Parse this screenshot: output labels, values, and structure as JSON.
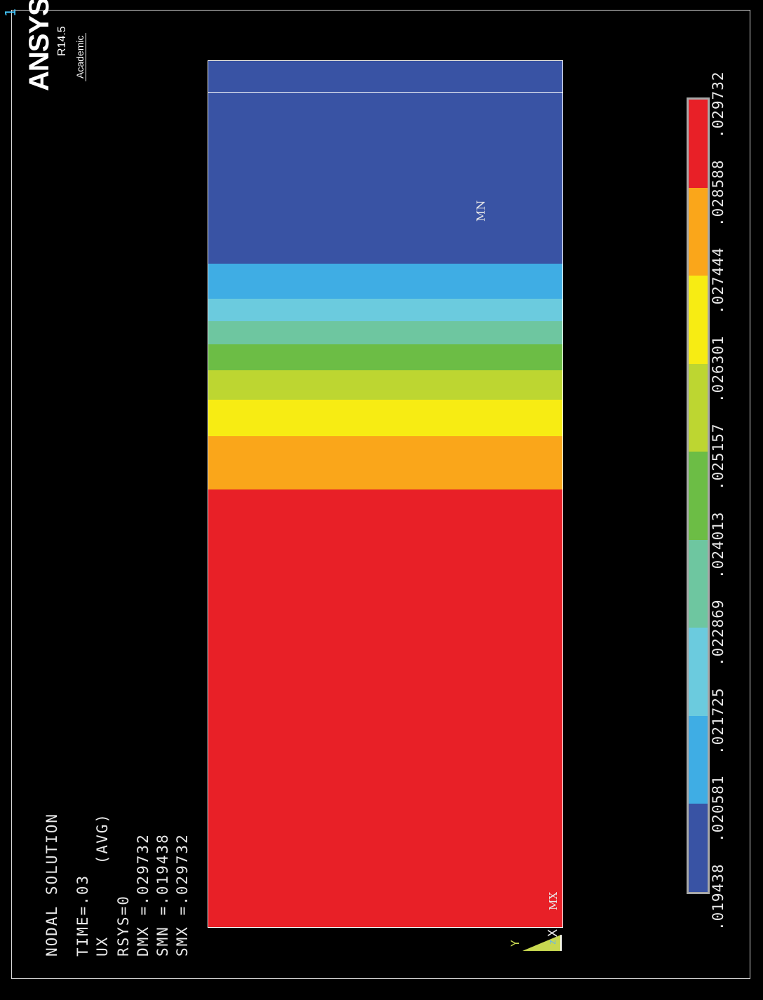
{
  "window": {
    "number": "1"
  },
  "logo": {
    "brand": "ANSYS",
    "version": "R14.5",
    "edition": "Academic"
  },
  "info": {
    "title": "NODAL SOLUTION",
    "time": "TIME=.03",
    "result": "UX       (AVG)",
    "rsys": "RSYS=0",
    "dmx": "DMX =.029732",
    "smn": "SMN =.019438",
    "smx": "SMX =.029732"
  },
  "markers": {
    "min": "MN",
    "max": "MX"
  },
  "triad": {
    "y_label": "Y",
    "z_label": "Z",
    "x_label": "X"
  },
  "contour": {
    "bands_from_max": [
      {
        "color": "#e82027",
        "value_range": [
          0.028588,
          0.029732
        ]
      },
      {
        "color": "#faa61a",
        "value_range": [
          0.027444,
          0.028588
        ]
      },
      {
        "color": "#f7ec13",
        "value_range": [
          0.026301,
          0.027444
        ]
      },
      {
        "color": "#bdd631",
        "value_range": [
          0.025157,
          0.026301
        ]
      },
      {
        "color": "#6cbd45",
        "value_range": [
          0.024013,
          0.025157
        ]
      },
      {
        "color": "#6ec6a0",
        "value_range": [
          0.022869,
          0.024013
        ]
      },
      {
        "color": "#6bcbde",
        "value_range": [
          0.021725,
          0.022869
        ]
      },
      {
        "color": "#3fade4",
        "value_range": [
          0.020581,
          0.021725
        ]
      },
      {
        "color": "#3953a4",
        "value_range": [
          0.019438,
          0.020581
        ]
      }
    ]
  },
  "legend": {
    "ticks": [
      ".019438",
      ".020581",
      ".021725",
      ".022869",
      ".024013",
      ".025157",
      ".026301",
      ".027444",
      ".028588",
      ".029732"
    ],
    "colors": [
      "#3953a4",
      "#3fade4",
      "#6bcbde",
      "#6ec6a0",
      "#6cbd45",
      "#bdd631",
      "#f7ec13",
      "#faa61a",
      "#e82027"
    ]
  }
}
